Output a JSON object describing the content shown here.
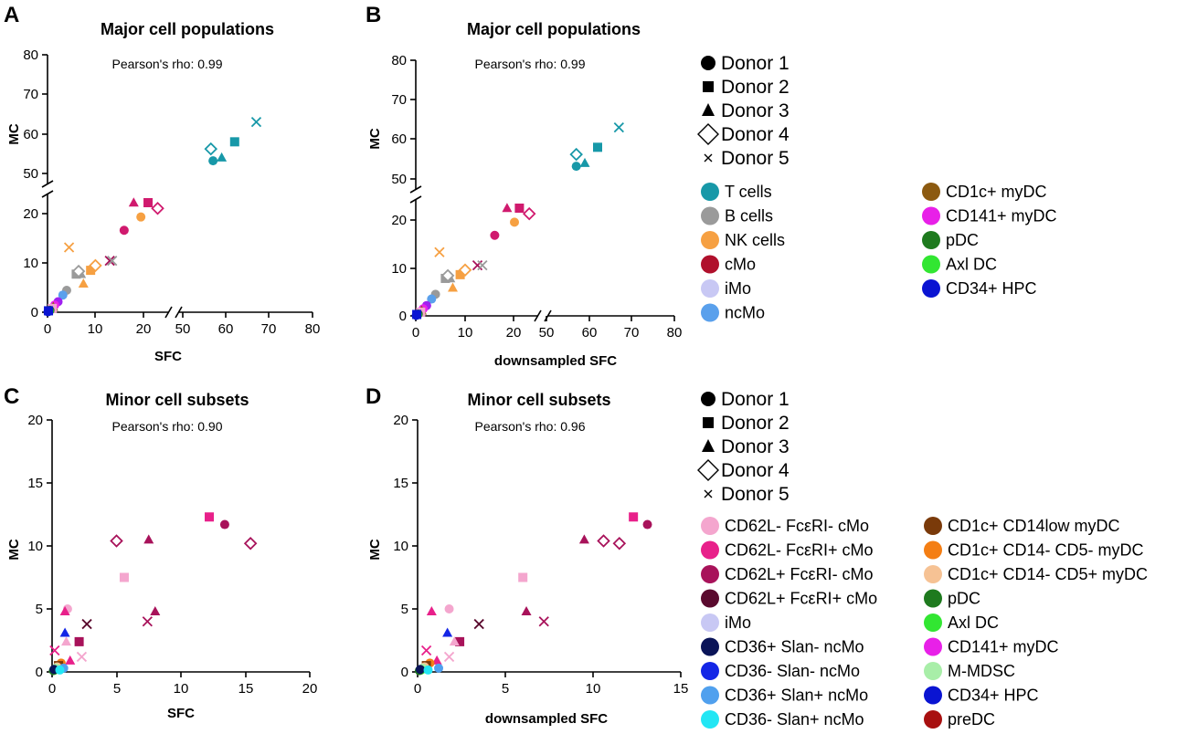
{
  "panel_letters": [
    "A",
    "B",
    "C",
    "D"
  ],
  "donor_legend": [
    {
      "label": "Donor 1",
      "shape": "circle"
    },
    {
      "label": "Donor 2",
      "shape": "square"
    },
    {
      "label": "Donor 3",
      "shape": "triangle"
    },
    {
      "label": "Donor 4",
      "shape": "diamond"
    },
    {
      "label": "Donor 5",
      "shape": "x"
    }
  ],
  "major_legend": [
    {
      "label": "T cells",
      "color": "#1798A8"
    },
    {
      "label": "B cells",
      "color": "#9A9A9A"
    },
    {
      "label": "NK cells",
      "color": "#F6A042"
    },
    {
      "label": "cMo",
      "color": "#B0102C"
    },
    {
      "label": "iMo",
      "color": "#C8C8F4"
    },
    {
      "label": "ncMo",
      "color": "#5AA0EC"
    },
    {
      "label": "CD1c+ myDC",
      "color": "#8C5A10"
    },
    {
      "label": "CD141+ myDC",
      "color": "#E820E8"
    },
    {
      "label": "pDC",
      "color": "#1E7A1E"
    },
    {
      "label": "Axl DC",
      "color": "#32E632"
    },
    {
      "label": "CD34+ HPC",
      "color": "#0A14D2"
    }
  ],
  "minor_legend": [
    {
      "label": "CD62L- FcεRI- cMo",
      "color": "#F4A6CE"
    },
    {
      "label": "CD62L- FcεRI+ cMo",
      "color": "#E8208A"
    },
    {
      "label": "CD62L+ FcεRI- cMo",
      "color": "#A8125A"
    },
    {
      "label": "CD62L+ FcεRI+ cMo",
      "color": "#5A0A2E"
    },
    {
      "label": "iMo",
      "color": "#C8C8F4"
    },
    {
      "label": "CD36+ Slan- ncMo",
      "color": "#0A1458"
    },
    {
      "label": "CD36- Slan- ncMo",
      "color": "#1426E6"
    },
    {
      "label": "CD36+ Slan+ ncMo",
      "color": "#50A0EE"
    },
    {
      "label": "CD36- Slan+ ncMo",
      "color": "#22E6F4"
    },
    {
      "label": "CD1c+ CD14low myDC",
      "color": "#7A3A0A"
    },
    {
      "label": "CD1c+ CD14- CD5- myDC",
      "color": "#F47E14"
    },
    {
      "label": "CD1c+ CD14- CD5+ myDC",
      "color": "#F6C294"
    },
    {
      "label": "pDC",
      "color": "#1E7A1E"
    },
    {
      "label": "Axl DC",
      "color": "#32E632"
    },
    {
      "label": "CD141+ myDC",
      "color": "#E820E8"
    },
    {
      "label": "M-MDSC",
      "color": "#A8EEA8"
    },
    {
      "label": "CD34+ HPC",
      "color": "#0A14D2"
    },
    {
      "label": "preDC",
      "color": "#A81010"
    }
  ],
  "chart_data": [
    {
      "panel": "A",
      "type": "scatter",
      "title": "Major cell populations",
      "annotation": "Pearson's rho: 0.99",
      "xlabel": "SFC",
      "ylabel": "MC",
      "x_ticks": [
        "0",
        "10",
        "20",
        "50",
        "60",
        "70",
        "80"
      ],
      "y_ticks": [
        "0",
        "10",
        "20",
        "50",
        "60",
        "70",
        "80"
      ],
      "x_axis_broken": true,
      "y_axis_broken": true,
      "points": [
        {
          "x": 57,
          "y": 53.2,
          "color": "#1798A8",
          "shape": "circle"
        },
        {
          "x": 62,
          "y": 58,
          "color": "#1798A8",
          "shape": "square"
        },
        {
          "x": 59,
          "y": 54,
          "color": "#1798A8",
          "shape": "triangle"
        },
        {
          "x": 56.5,
          "y": 56.2,
          "color": "#1798A8",
          "shape": "diamond"
        },
        {
          "x": 67,
          "y": 63,
          "color": "#1798A8",
          "shape": "x"
        },
        {
          "x": 16,
          "y": 17.2,
          "color": "#D01A6E",
          "shape": "circle"
        },
        {
          "x": 21,
          "y": 23,
          "color": "#D01A6E",
          "shape": "square"
        },
        {
          "x": 18,
          "y": 23,
          "color": "#D01A6E",
          "shape": "triangle"
        },
        {
          "x": 23,
          "y": 21.8,
          "color": "#D01A6E",
          "shape": "diamond"
        },
        {
          "x": 13,
          "y": 10.8,
          "color": "#A8125A",
          "shape": "x"
        },
        {
          "x": 19.5,
          "y": 20,
          "color": "#F6A042",
          "shape": "circle"
        },
        {
          "x": 9,
          "y": 8.8,
          "color": "#F6A042",
          "shape": "square"
        },
        {
          "x": 7.5,
          "y": 6,
          "color": "#F6A042",
          "shape": "triangle"
        },
        {
          "x": 10,
          "y": 9.8,
          "color": "#F6A042",
          "shape": "diamond"
        },
        {
          "x": 4.5,
          "y": 13.6,
          "color": "#F6A042",
          "shape": "x"
        },
        {
          "x": 6,
          "y": 8,
          "color": "#9A9A9A",
          "shape": "square"
        },
        {
          "x": 7,
          "y": 8,
          "color": "#9A9A9A",
          "shape": "triangle"
        },
        {
          "x": 6.5,
          "y": 8.6,
          "color": "#9A9A9A",
          "shape": "diamond"
        },
        {
          "x": 13.5,
          "y": 10.8,
          "color": "#9A9A9A",
          "shape": "x"
        },
        {
          "x": 4,
          "y": 4.6,
          "color": "#9A9A9A",
          "shape": "circle"
        },
        {
          "x": 3.2,
          "y": 3.6,
          "color": "#5AA0EC",
          "shape": "circle"
        },
        {
          "x": 2.2,
          "y": 2.2,
          "color": "#A020F0",
          "shape": "circle"
        },
        {
          "x": 1.5,
          "y": 1.5,
          "color": "#E820E8",
          "shape": "circle"
        },
        {
          "x": 1.2,
          "y": 1.1,
          "color": "#8C5A10",
          "shape": "triangle"
        },
        {
          "x": 1,
          "y": 0.8,
          "color": "#F4A6CE",
          "shape": "square"
        },
        {
          "x": 0.5,
          "y": 0.4,
          "color": "#1E7A1E",
          "shape": "circle"
        },
        {
          "x": 0.3,
          "y": 0.2,
          "color": "#32E632",
          "shape": "circle"
        },
        {
          "x": 0.1,
          "y": 0.1,
          "color": "#0A14D2",
          "shape": "circle"
        },
        {
          "x": 0.2,
          "y": 0.3,
          "color": "#0A14D2",
          "shape": "square"
        }
      ]
    },
    {
      "panel": "B",
      "type": "scatter",
      "title": "Major cell populations",
      "annotation": "Pearson's rho: 0.99",
      "xlabel": "downsampled SFC",
      "ylabel": "MC",
      "x_ticks": [
        "0",
        "10",
        "20",
        "50",
        "60",
        "70",
        "80"
      ],
      "y_ticks": [
        "0",
        "10",
        "20",
        "50",
        "60",
        "70",
        "80"
      ],
      "x_axis_broken": true,
      "y_axis_broken": true,
      "points": [
        {
          "x": 57,
          "y": 53.2,
          "color": "#1798A8",
          "shape": "circle"
        },
        {
          "x": 62,
          "y": 58,
          "color": "#1798A8",
          "shape": "square"
        },
        {
          "x": 59,
          "y": 54,
          "color": "#1798A8",
          "shape": "triangle"
        },
        {
          "x": 57,
          "y": 56.2,
          "color": "#1798A8",
          "shape": "diamond"
        },
        {
          "x": 67,
          "y": 63,
          "color": "#1798A8",
          "shape": "x"
        },
        {
          "x": 16,
          "y": 17.2,
          "color": "#D01A6E",
          "shape": "circle"
        },
        {
          "x": 21,
          "y": 23,
          "color": "#D01A6E",
          "shape": "square"
        },
        {
          "x": 18.5,
          "y": 23,
          "color": "#D01A6E",
          "shape": "triangle"
        },
        {
          "x": 23,
          "y": 21.8,
          "color": "#D01A6E",
          "shape": "diamond"
        },
        {
          "x": 12.5,
          "y": 10.8,
          "color": "#A8125A",
          "shape": "x"
        },
        {
          "x": 20,
          "y": 20,
          "color": "#F6A042",
          "shape": "circle"
        },
        {
          "x": 9,
          "y": 8.8,
          "color": "#F6A042",
          "shape": "square"
        },
        {
          "x": 7.5,
          "y": 6,
          "color": "#F6A042",
          "shape": "triangle"
        },
        {
          "x": 10,
          "y": 9.8,
          "color": "#F6A042",
          "shape": "diamond"
        },
        {
          "x": 4.8,
          "y": 13.6,
          "color": "#F6A042",
          "shape": "x"
        },
        {
          "x": 6,
          "y": 8,
          "color": "#9A9A9A",
          "shape": "square"
        },
        {
          "x": 7,
          "y": 8,
          "color": "#9A9A9A",
          "shape": "triangle"
        },
        {
          "x": 6.5,
          "y": 8.6,
          "color": "#9A9A9A",
          "shape": "diamond"
        },
        {
          "x": 13.5,
          "y": 10.8,
          "color": "#9A9A9A",
          "shape": "x"
        },
        {
          "x": 4,
          "y": 4.6,
          "color": "#9A9A9A",
          "shape": "circle"
        },
        {
          "x": 3.2,
          "y": 3.6,
          "color": "#5AA0EC",
          "shape": "circle"
        },
        {
          "x": 2.2,
          "y": 2.2,
          "color": "#A020F0",
          "shape": "circle"
        },
        {
          "x": 1.5,
          "y": 1.5,
          "color": "#E820E8",
          "shape": "circle"
        },
        {
          "x": 1.2,
          "y": 1.1,
          "color": "#8C5A10",
          "shape": "triangle"
        },
        {
          "x": 1,
          "y": 0.8,
          "color": "#F4A6CE",
          "shape": "square"
        },
        {
          "x": 0.5,
          "y": 0.4,
          "color": "#1E7A1E",
          "shape": "circle"
        },
        {
          "x": 0.3,
          "y": 0.2,
          "color": "#32E632",
          "shape": "circle"
        },
        {
          "x": 0.1,
          "y": 0.1,
          "color": "#0A14D2",
          "shape": "circle"
        },
        {
          "x": 0.2,
          "y": 0.3,
          "color": "#0A14D2",
          "shape": "square"
        }
      ]
    },
    {
      "panel": "C",
      "type": "scatter",
      "title": "Minor cell subsets",
      "annotation": "Pearson's rho: 0.90",
      "xlabel": "SFC",
      "ylabel": "MC",
      "x_ticks": [
        "0",
        "5",
        "10",
        "15",
        "20"
      ],
      "y_ticks": [
        "0",
        "5",
        "10",
        "15",
        "20"
      ],
      "x_axis_broken": false,
      "y_axis_broken": false,
      "points": [
        {
          "x": 12.2,
          "y": 12.3,
          "color": "#E8208A",
          "shape": "square"
        },
        {
          "x": 13.4,
          "y": 11.7,
          "color": "#A8125A",
          "shape": "circle"
        },
        {
          "x": 15.4,
          "y": 10.2,
          "color": "#A8125A",
          "shape": "diamond"
        },
        {
          "x": 5,
          "y": 10.4,
          "color": "#A8125A",
          "shape": "diamond"
        },
        {
          "x": 7.5,
          "y": 10.5,
          "color": "#A8125A",
          "shape": "triangle"
        },
        {
          "x": 5.6,
          "y": 7.5,
          "color": "#F4A6CE",
          "shape": "square"
        },
        {
          "x": 8,
          "y": 4.8,
          "color": "#A8125A",
          "shape": "triangle"
        },
        {
          "x": 7.4,
          "y": 4,
          "color": "#A8125A",
          "shape": "x"
        },
        {
          "x": 1.2,
          "y": 5,
          "color": "#F4A6CE",
          "shape": "circle"
        },
        {
          "x": 1,
          "y": 4.8,
          "color": "#E8208A",
          "shape": "triangle"
        },
        {
          "x": 2.7,
          "y": 3.8,
          "color": "#5A0A2E",
          "shape": "x"
        },
        {
          "x": 1,
          "y": 3.1,
          "color": "#1426E6",
          "shape": "triangle"
        },
        {
          "x": 2.1,
          "y": 2.4,
          "color": "#A8125A",
          "shape": "square"
        },
        {
          "x": 1.1,
          "y": 2.4,
          "color": "#F4A6CE",
          "shape": "triangle"
        },
        {
          "x": 0.2,
          "y": 1.7,
          "color": "#E8208A",
          "shape": "x"
        },
        {
          "x": 2.3,
          "y": 1.2,
          "color": "#F4A6CE",
          "shape": "x"
        },
        {
          "x": 1.4,
          "y": 0.9,
          "color": "#E8208A",
          "shape": "triangle"
        },
        {
          "x": 0.7,
          "y": 0.7,
          "color": "#F47E14",
          "shape": "circle"
        },
        {
          "x": 0.5,
          "y": 0.5,
          "color": "#7A3A0A",
          "shape": "square"
        },
        {
          "x": 0.4,
          "y": 0.4,
          "color": "#F6C294",
          "shape": "circle"
        },
        {
          "x": 0.9,
          "y": 0.3,
          "color": "#50A0EE",
          "shape": "circle"
        },
        {
          "x": 0.3,
          "y": 0.3,
          "color": "#A8EEA8",
          "shape": "circle"
        },
        {
          "x": 0.2,
          "y": 0.15,
          "color": "#32E632",
          "shape": "circle"
        },
        {
          "x": 0.1,
          "y": 0.1,
          "color": "#1E7A1E",
          "shape": "circle"
        },
        {
          "x": 0.15,
          "y": 0.2,
          "color": "#0A1458",
          "shape": "circle"
        },
        {
          "x": 0.6,
          "y": 0.15,
          "color": "#22E6F4",
          "shape": "circle"
        }
      ]
    },
    {
      "panel": "D",
      "type": "scatter",
      "title": "Minor cell subsets",
      "annotation": "Pearson's rho: 0.96",
      "xlabel": "downsampled SFC",
      "ylabel": "MC",
      "x_ticks": [
        "0",
        "5",
        "10",
        "15"
      ],
      "y_ticks": [
        "0",
        "5",
        "10",
        "15",
        "20"
      ],
      "x_axis_broken": false,
      "y_axis_broken": false,
      "points": [
        {
          "x": 12.3,
          "y": 12.3,
          "color": "#E8208A",
          "shape": "square"
        },
        {
          "x": 13.1,
          "y": 11.7,
          "color": "#A8125A",
          "shape": "circle"
        },
        {
          "x": 11.5,
          "y": 10.2,
          "color": "#A8125A",
          "shape": "diamond"
        },
        {
          "x": 10.6,
          "y": 10.4,
          "color": "#A8125A",
          "shape": "diamond"
        },
        {
          "x": 9.5,
          "y": 10.5,
          "color": "#A8125A",
          "shape": "triangle"
        },
        {
          "x": 6,
          "y": 7.5,
          "color": "#F4A6CE",
          "shape": "square"
        },
        {
          "x": 6.2,
          "y": 4.8,
          "color": "#A8125A",
          "shape": "triangle"
        },
        {
          "x": 7.2,
          "y": 4,
          "color": "#A8125A",
          "shape": "x"
        },
        {
          "x": 1.8,
          "y": 5,
          "color": "#F4A6CE",
          "shape": "circle"
        },
        {
          "x": 0.8,
          "y": 4.8,
          "color": "#E8208A",
          "shape": "triangle"
        },
        {
          "x": 3.5,
          "y": 3.8,
          "color": "#5A0A2E",
          "shape": "x"
        },
        {
          "x": 1.7,
          "y": 3.1,
          "color": "#1426E6",
          "shape": "triangle"
        },
        {
          "x": 2.4,
          "y": 2.4,
          "color": "#A8125A",
          "shape": "square"
        },
        {
          "x": 2.1,
          "y": 2.4,
          "color": "#F4A6CE",
          "shape": "triangle"
        },
        {
          "x": 0.5,
          "y": 1.7,
          "color": "#E8208A",
          "shape": "x"
        },
        {
          "x": 1.8,
          "y": 1.2,
          "color": "#F4A6CE",
          "shape": "x"
        },
        {
          "x": 1.1,
          "y": 0.9,
          "color": "#E8208A",
          "shape": "triangle"
        },
        {
          "x": 0.7,
          "y": 0.7,
          "color": "#F47E14",
          "shape": "circle"
        },
        {
          "x": 0.5,
          "y": 0.5,
          "color": "#7A3A0A",
          "shape": "square"
        },
        {
          "x": 0.4,
          "y": 0.4,
          "color": "#F6C294",
          "shape": "circle"
        },
        {
          "x": 1.2,
          "y": 0.3,
          "color": "#50A0EE",
          "shape": "circle"
        },
        {
          "x": 0.3,
          "y": 0.3,
          "color": "#A8EEA8",
          "shape": "circle"
        },
        {
          "x": 0.2,
          "y": 0.15,
          "color": "#32E632",
          "shape": "circle"
        },
        {
          "x": 0.1,
          "y": 0.1,
          "color": "#1E7A1E",
          "shape": "circle"
        },
        {
          "x": 0.15,
          "y": 0.2,
          "color": "#0A1458",
          "shape": "circle"
        },
        {
          "x": 0.6,
          "y": 0.15,
          "color": "#22E6F4",
          "shape": "circle"
        }
      ]
    }
  ]
}
